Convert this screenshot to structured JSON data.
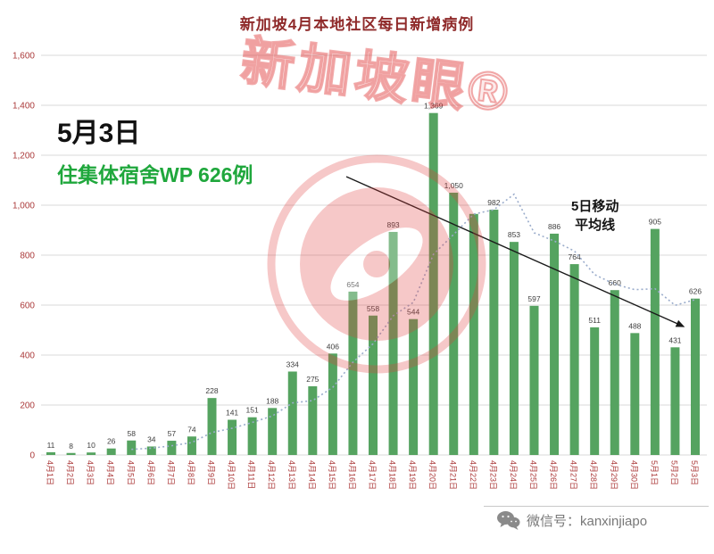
{
  "chart": {
    "title": "新加坡4月本地社区每日新增病例",
    "ma_label_line1": "5日移动",
    "ma_label_line2": "平均线",
    "colors": {
      "bar": "#55a360",
      "axis_label": "#ab3a3a",
      "title": "#8f2a2a",
      "grid": "#d9d9d9",
      "bar_value_label": "#3f3f3f",
      "ma_line": "#9aaccb",
      "annotation_green": "#1fa73c",
      "arrow": "#1a1a1a",
      "watermark_red": "#e03c3c",
      "footer_gray": "#787878"
    }
  },
  "annotation": {
    "line1": "5月3日",
    "line2": "住集体宿舍WP 626例"
  },
  "chart_data": {
    "type": "bar",
    "title": "新加坡4月本地社区每日新增病例",
    "categories": [
      "4月1日",
      "4月2日",
      "4月3日",
      "4月4日",
      "4月5日",
      "4月6日",
      "4月7日",
      "4月8日",
      "4月9日",
      "4月10日",
      "4月11日",
      "4月12日",
      "4月13日",
      "4月14日",
      "4月15日",
      "4月16日",
      "4月17日",
      "4月18日",
      "4月19日",
      "4月20日",
      "4月21日",
      "4月22日",
      "4月23日",
      "4月24日",
      "4月25日",
      "4月26日",
      "4月27日",
      "4月28日",
      "4月29日",
      "4月30日",
      "5月1日",
      "5月2日",
      "5月3日"
    ],
    "values": [
      11,
      8,
      10,
      26,
      58,
      34,
      57,
      74,
      228,
      141,
      151,
      188,
      334,
      275,
      406,
      654,
      558,
      893,
      544,
      1369,
      1050,
      965,
      982,
      853,
      597,
      886,
      764,
      511,
      660,
      488,
      905,
      431,
      626
    ],
    "bar_labels": [
      "11",
      "8",
      "10",
      "26",
      "58",
      "34",
      "57",
      "74",
      "228",
      "141",
      "151",
      "188",
      "334",
      "275",
      "406",
      "654",
      "558",
      "893",
      "544",
      "1,369",
      "1,050",
      "",
      "982",
      "853",
      "597",
      "886",
      "764",
      "511",
      "660",
      "488",
      "905",
      "431",
      "626"
    ],
    "y_ticks": [
      "0",
      "200",
      "400",
      "600",
      "800",
      "1,000",
      "1,200",
      "1,400",
      "1,600"
    ],
    "ylim": [
      0,
      1600
    ],
    "grid": true,
    "legend_annotation": "5日移动平均线",
    "moving_average_window": 5,
    "xlabel": "",
    "ylabel": ""
  },
  "watermark": {
    "text": "新加坡眼®"
  },
  "footer": {
    "wechat_label": "微信号：kanxinjiapo"
  }
}
